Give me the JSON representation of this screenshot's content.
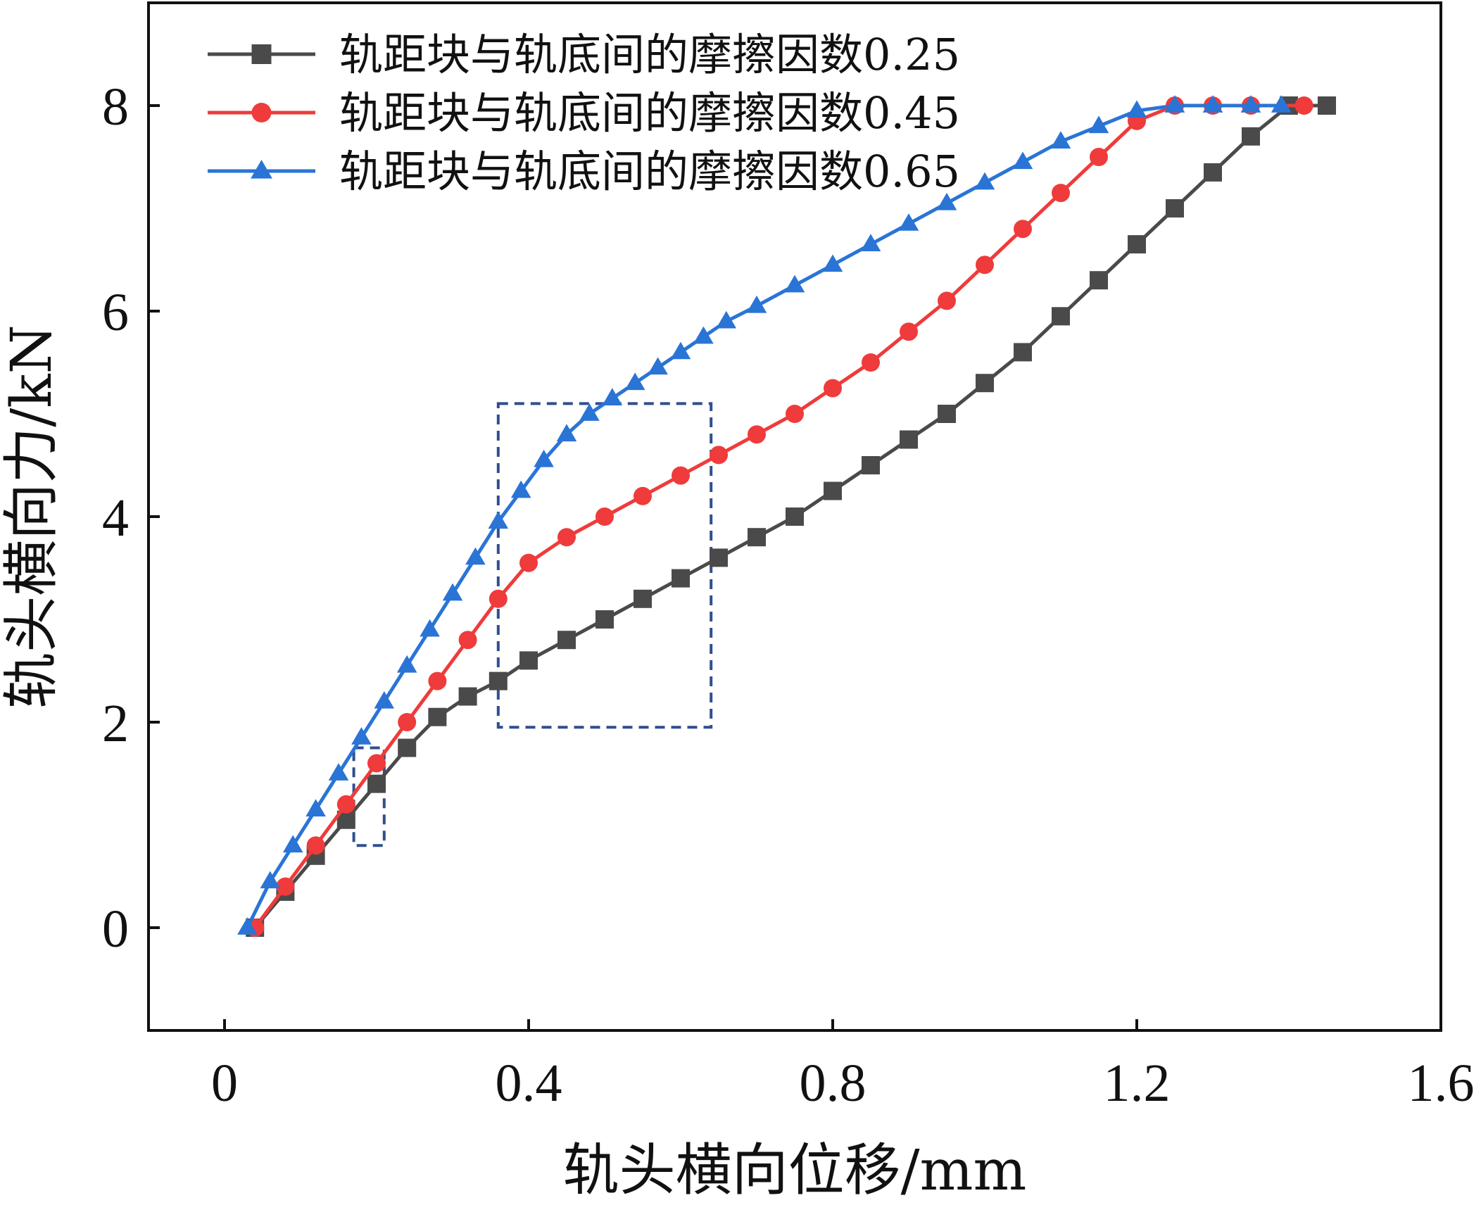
{
  "chart_data": {
    "type": "line",
    "xlabel": "轨头横向位移/mm",
    "ylabel": "轨头横向力/kN",
    "xlim": [
      -0.1,
      1.6
    ],
    "ylim": [
      -1,
      9
    ],
    "xticks": [
      0,
      0.4,
      0.8,
      1.2,
      1.6
    ],
    "xtick_labels": [
      "0",
      "0.4",
      "0.8",
      "1.2",
      "1.6"
    ],
    "yticks": [
      0,
      2,
      4,
      6,
      8
    ],
    "ytick_labels": [
      "0",
      "2",
      "4",
      "6",
      "8"
    ],
    "grid": false,
    "legend_position": "top-left",
    "series": [
      {
        "name": "轨距块与轨底间的摩擦因数0.25",
        "color": "#4a4a4a",
        "marker": "square",
        "x": [
          0.04,
          0.08,
          0.12,
          0.16,
          0.2,
          0.24,
          0.28,
          0.32,
          0.36,
          0.4,
          0.45,
          0.5,
          0.55,
          0.6,
          0.65,
          0.7,
          0.75,
          0.8,
          0.85,
          0.9,
          0.95,
          1.0,
          1.05,
          1.1,
          1.15,
          1.2,
          1.25,
          1.3,
          1.35,
          1.4,
          1.45
        ],
        "y": [
          0.0,
          0.35,
          0.7,
          1.05,
          1.4,
          1.75,
          2.05,
          2.25,
          2.4,
          2.6,
          2.8,
          3.0,
          3.2,
          3.4,
          3.6,
          3.8,
          4.0,
          4.25,
          4.5,
          4.75,
          5.0,
          5.3,
          5.6,
          5.95,
          6.3,
          6.65,
          7.0,
          7.35,
          7.7,
          8.0,
          8.0
        ]
      },
      {
        "name": "轨距块与轨底间的摩擦因数0.45",
        "color": "#ef3b3b",
        "marker": "circle",
        "x": [
          0.04,
          0.08,
          0.12,
          0.16,
          0.2,
          0.24,
          0.28,
          0.32,
          0.36,
          0.4,
          0.45,
          0.5,
          0.55,
          0.6,
          0.65,
          0.7,
          0.75,
          0.8,
          0.85,
          0.9,
          0.95,
          1.0,
          1.05,
          1.1,
          1.15,
          1.2,
          1.25,
          1.3,
          1.35,
          1.42
        ],
        "y": [
          0.0,
          0.4,
          0.8,
          1.2,
          1.6,
          2.0,
          2.4,
          2.8,
          3.2,
          3.55,
          3.8,
          4.0,
          4.2,
          4.4,
          4.6,
          4.8,
          5.0,
          5.25,
          5.5,
          5.8,
          6.1,
          6.45,
          6.8,
          7.15,
          7.5,
          7.85,
          8.0,
          8.0,
          8.0,
          8.0
        ]
      },
      {
        "name": "轨距块与轨底间的摩擦因数0.65",
        "color": "#2a74d6",
        "marker": "triangle",
        "x": [
          0.03,
          0.06,
          0.09,
          0.12,
          0.15,
          0.18,
          0.21,
          0.24,
          0.27,
          0.3,
          0.33,
          0.36,
          0.39,
          0.42,
          0.45,
          0.48,
          0.51,
          0.54,
          0.57,
          0.6,
          0.63,
          0.66,
          0.7,
          0.75,
          0.8,
          0.85,
          0.9,
          0.95,
          1.0,
          1.05,
          1.1,
          1.15,
          1.2,
          1.25,
          1.3,
          1.35,
          1.39
        ],
        "y": [
          0.0,
          0.45,
          0.8,
          1.15,
          1.5,
          1.85,
          2.2,
          2.55,
          2.9,
          3.25,
          3.6,
          3.95,
          4.25,
          4.55,
          4.8,
          5.0,
          5.15,
          5.3,
          5.45,
          5.6,
          5.75,
          5.9,
          6.05,
          6.25,
          6.45,
          6.65,
          6.85,
          7.05,
          7.25,
          7.45,
          7.65,
          7.8,
          7.95,
          8.0,
          8.0,
          8.0,
          8.0
        ]
      }
    ],
    "annotations": [
      {
        "type": "dashed-rectangle",
        "color": "#2f4f8f",
        "x0": 0.17,
        "x1": 0.21,
        "y0": 0.8,
        "y1": 1.75
      },
      {
        "type": "dashed-rectangle",
        "color": "#2f4f8f",
        "x0": 0.36,
        "x1": 0.64,
        "y0": 1.95,
        "y1": 5.1
      }
    ]
  }
}
